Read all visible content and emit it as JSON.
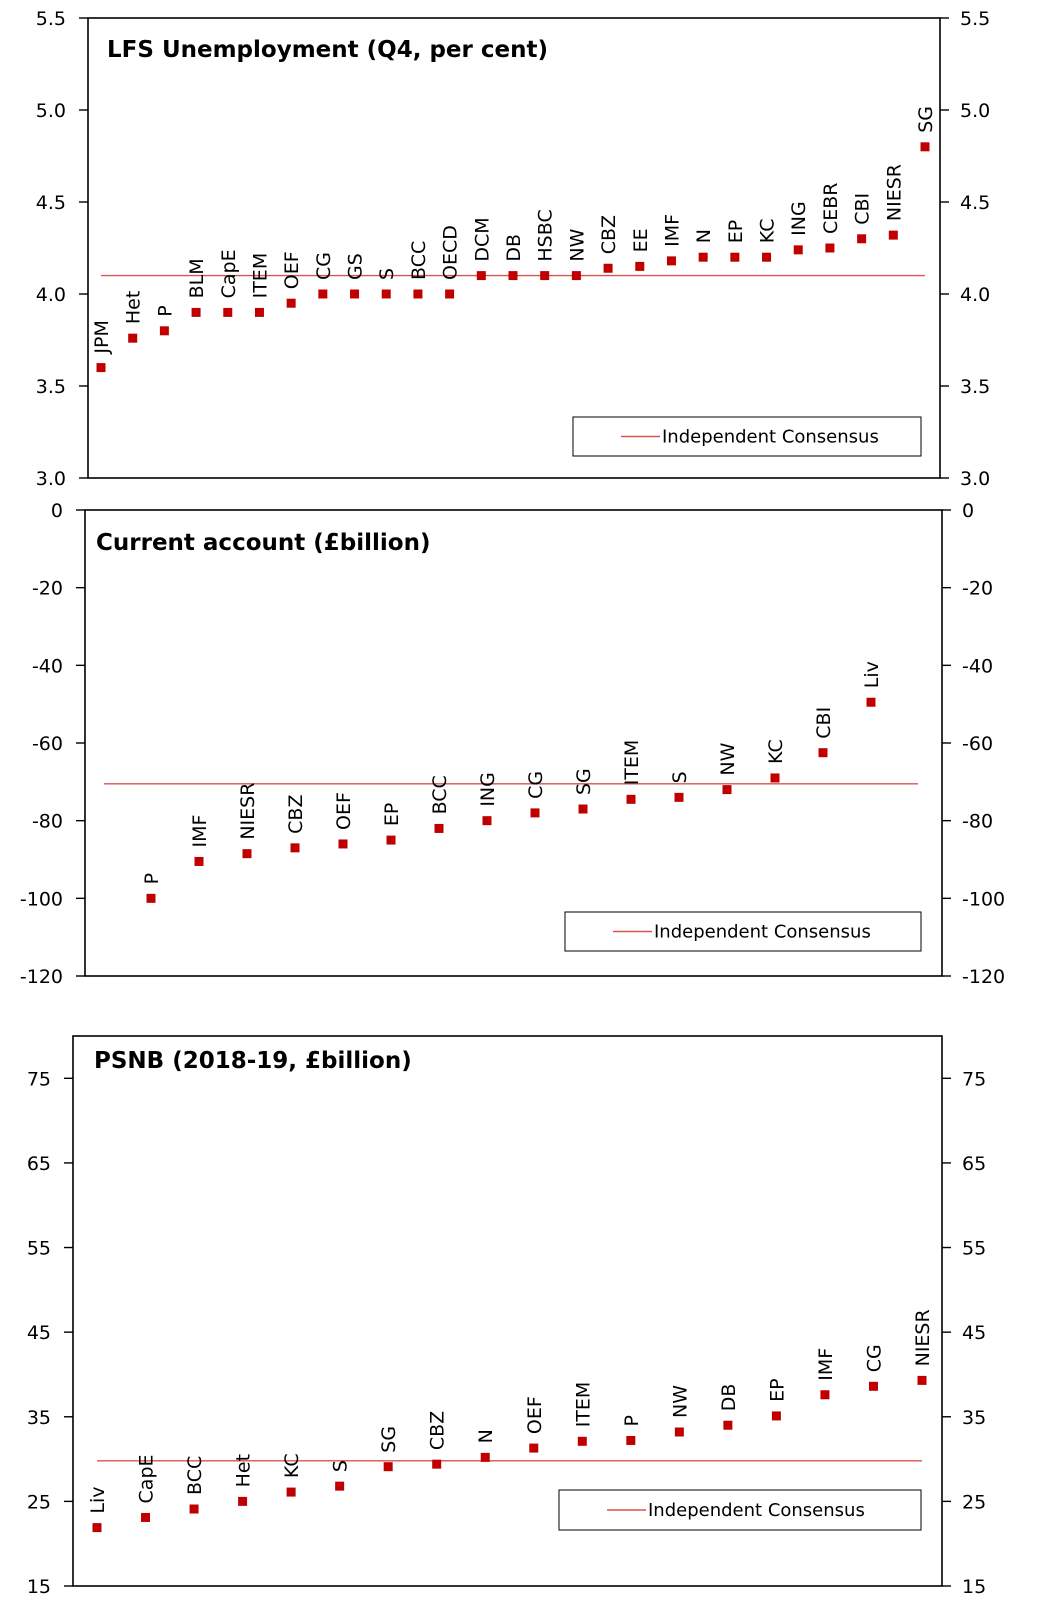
{
  "colors": {
    "marker": "#c00000",
    "consensus_line": "#d9534f",
    "axis": "#000000",
    "text": "#000000"
  },
  "legend_label": "Independent Consensus",
  "chart_data": [
    {
      "type": "scatter",
      "title": "LFS Unemployment  (Q4, per cent)",
      "xlabel": "",
      "ylabel": "",
      "ylim": [
        3.0,
        5.5
      ],
      "yticks": [
        "3.0",
        "3.5",
        "4.0",
        "4.5",
        "5.0",
        "5.5"
      ],
      "ytick_values": [
        3.0,
        3.5,
        4.0,
        4.5,
        5.0,
        5.5
      ],
      "grid": false,
      "legend_position": "bottom-right",
      "consensus": 4.1,
      "categories": [
        "JPM",
        "Het",
        "P",
        "BLM",
        "CapE",
        "ITEM",
        "OEF",
        "CG",
        "GS",
        "S",
        "BCC",
        "OECD",
        "DCM",
        "DB",
        "HSBC",
        "NW",
        "CBZ",
        "EE",
        "IMF",
        "N",
        "EP",
        "KC",
        "ING",
        "CEBR",
        "CBI",
        "NIESR",
        "SG"
      ],
      "values": [
        3.6,
        3.76,
        3.8,
        3.9,
        3.9,
        3.9,
        3.95,
        4.0,
        4.0,
        4.0,
        4.0,
        4.0,
        4.1,
        4.1,
        4.1,
        4.1,
        4.14,
        4.15,
        4.18,
        4.2,
        4.2,
        4.2,
        4.24,
        4.25,
        4.3,
        4.32,
        4.8
      ]
    },
    {
      "type": "scatter",
      "title": "Current account (£billion)",
      "xlabel": "",
      "ylabel": "",
      "ylim": [
        -120,
        0
      ],
      "yticks": [
        "-120",
        "-100",
        "-80",
        "-60",
        "-40",
        "-20",
        "0"
      ],
      "ytick_values": [
        -120,
        -100,
        -80,
        -60,
        -40,
        -20,
        0
      ],
      "grid": false,
      "legend_position": "bottom-right",
      "consensus": -70.5,
      "categories": [
        "P",
        "IMF",
        "NIESR",
        "CBZ",
        "OEF",
        "EP",
        "BCC",
        "ING",
        "CG",
        "SG",
        "ITEM",
        "S",
        "NW",
        "KC",
        "CBI",
        "Liv"
      ],
      "values": [
        -100,
        -90.5,
        -88.5,
        -87,
        -86,
        -85,
        -82,
        -80,
        -78,
        -77,
        -74.5,
        -74,
        -72,
        -69,
        -62.5,
        -49.5
      ]
    },
    {
      "type": "scatter",
      "title": "PSNB (2018-19, £billion)",
      "xlabel": "",
      "ylabel": "",
      "ylim": [
        15,
        80
      ],
      "yticks": [
        "15",
        "25",
        "35",
        "45",
        "55",
        "65",
        "75"
      ],
      "ytick_values": [
        15,
        25,
        35,
        45,
        55,
        65,
        75
      ],
      "grid": false,
      "legend_position": "bottom-right",
      "consensus": 29.8,
      "categories": [
        "Liv",
        "CapE",
        "BCC",
        "Het",
        "KC",
        "S",
        "SG",
        "CBZ",
        "N",
        "OEF",
        "ITEM",
        "P",
        "NW",
        "DB",
        "EP",
        "IMF",
        "CG",
        "NIESR"
      ],
      "values": [
        21.9,
        23.1,
        24.1,
        25,
        26.1,
        26.8,
        29.1,
        29.4,
        30.2,
        31.3,
        32.1,
        32.2,
        33.2,
        34,
        35.1,
        37.6,
        38.6,
        39.3
      ]
    }
  ]
}
